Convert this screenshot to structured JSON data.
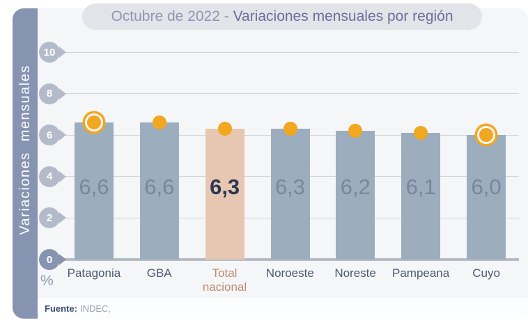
{
  "header": {
    "title_prefix": "Octubre de 2022 - ",
    "title_main": "Variaciones mensuales por región"
  },
  "y_axis": {
    "label": "Variaciones mensuales",
    "unit": "%"
  },
  "footer": {
    "source_label": "Fuente:",
    "source_value": "INDEC,"
  },
  "chart_data": {
    "type": "bar",
    "title": "Octubre de 2022 - Variaciones mensuales por región",
    "ylabel": "Variaciones mensuales",
    "unit_label": "%",
    "ylim": [
      0,
      10
    ],
    "yticks": [
      10,
      8,
      6,
      4,
      2,
      0
    ],
    "grid": true,
    "categories": [
      "Patagonia",
      "GBA",
      "Total nacional",
      "Noroeste",
      "Noreste",
      "Pampeana",
      "Cuyo"
    ],
    "values": [
      6.6,
      6.6,
      6.3,
      6.3,
      6.2,
      6.1,
      6.0
    ],
    "value_labels": [
      "6,6",
      "6,6",
      "6,3",
      "6,3",
      "6,2",
      "6,1",
      "6,0"
    ],
    "highlight_index": 2,
    "ringed_dot_indices": [
      0,
      6
    ],
    "colors": {
      "bar": "#9cadbe",
      "bar_highlight": "#e8c7b2",
      "dot": "#f1a71f",
      "band": "#8694b2",
      "tick_badge": "#b3bac9",
      "tick_badge_zero": "#8694b2"
    }
  }
}
